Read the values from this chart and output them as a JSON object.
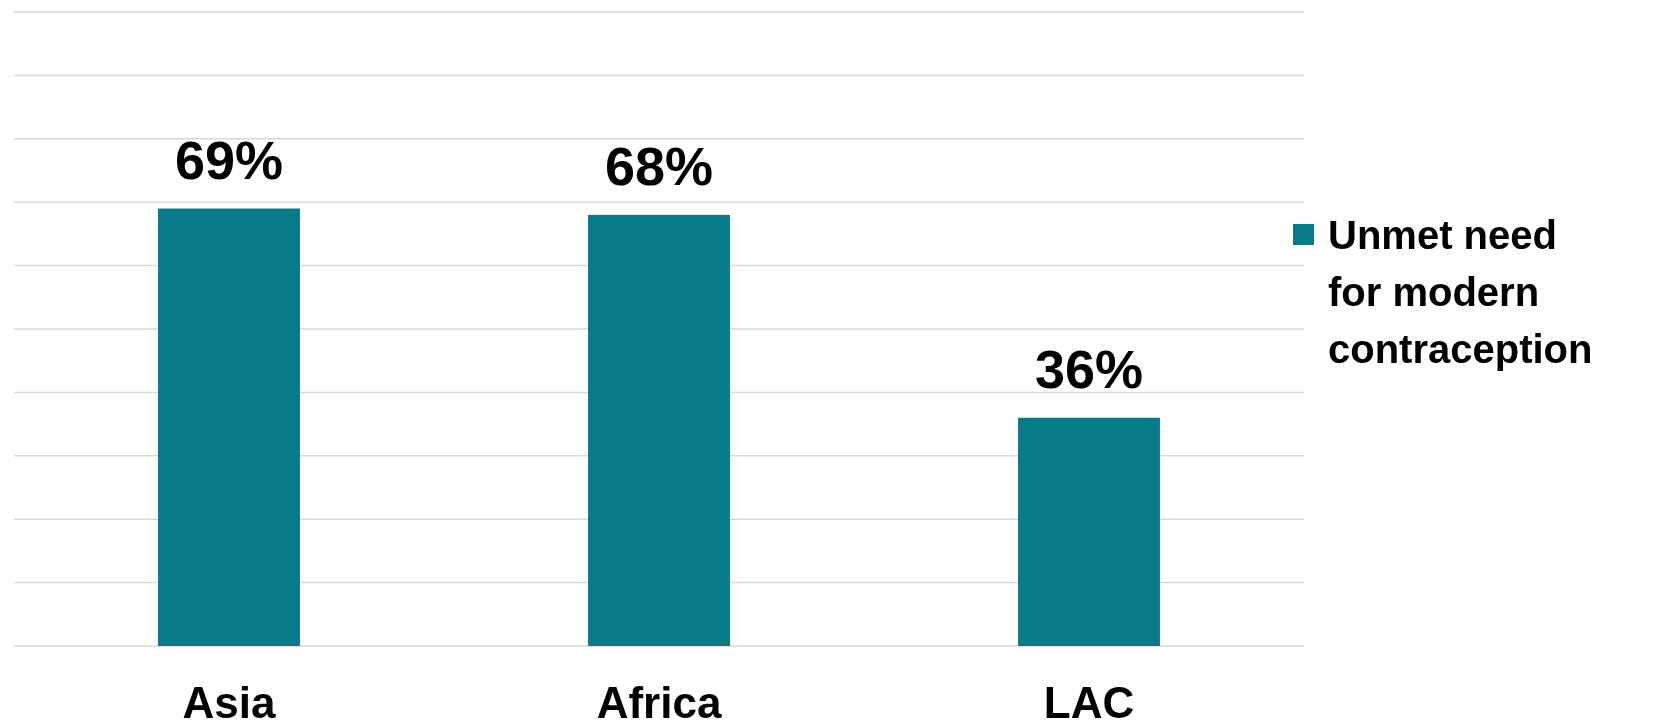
{
  "chart_data": {
    "type": "bar",
    "categories": [
      "Asia",
      "Africa",
      "LAC"
    ],
    "series": [
      {
        "name": "Unmet need for modern contraception",
        "color": "#077b8a",
        "values": [
          69,
          68,
          36
        ],
        "value_labels": [
          "69%",
          "68%",
          "36%"
        ]
      }
    ],
    "ylim": [
      0,
      100
    ],
    "yticks": [
      {
        "value": 0,
        "label": null
      },
      {
        "value": 10,
        "label": null
      },
      {
        "value": 20,
        "label": null
      },
      {
        "value": 30,
        "label": null
      },
      {
        "value": 40,
        "label": null
      },
      {
        "value": 50,
        "label": null
      },
      {
        "value": 60,
        "label": null
      },
      {
        "value": 70,
        "label": null
      },
      {
        "value": 80,
        "label": null
      },
      {
        "value": 90,
        "label": null
      },
      {
        "value": 100,
        "label": null
      }
    ],
    "grid": "y",
    "legend": "right",
    "tick_labels": "x"
  }
}
